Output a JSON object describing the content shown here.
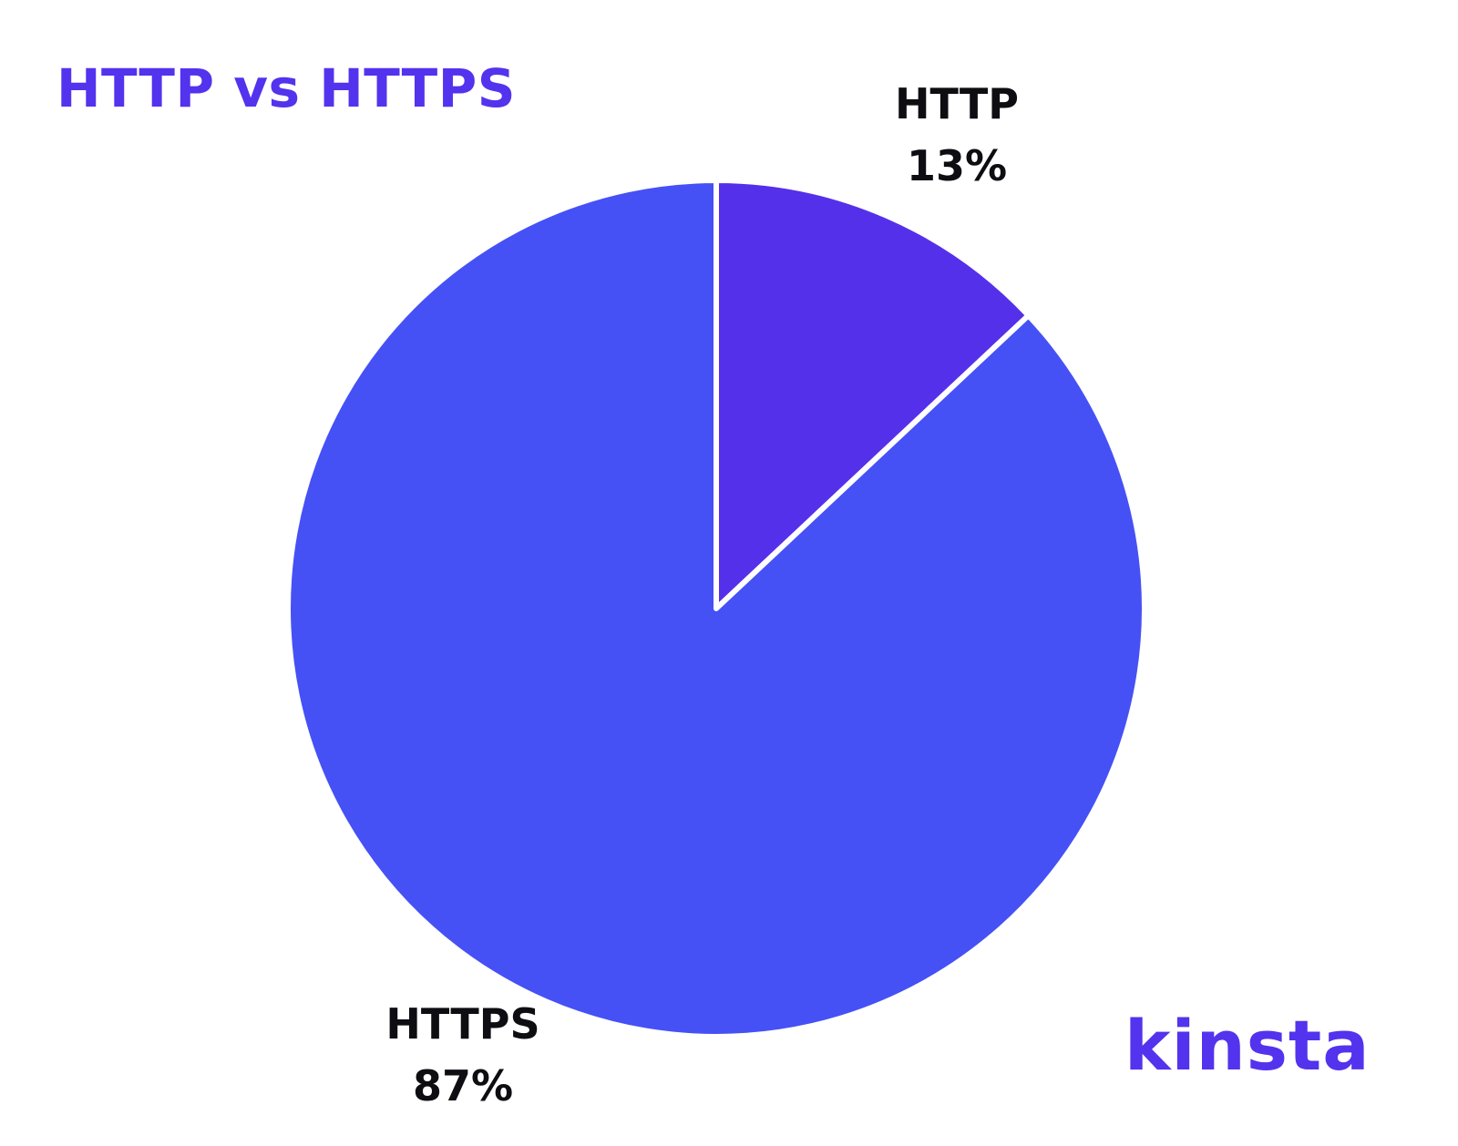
{
  "brand": {
    "logo_text": "kinsta",
    "accent_color": "#5333ed",
    "text_color": "#0d0d12"
  },
  "chart_data": {
    "type": "pie",
    "title": "HTTP vs HTTPS",
    "start_angle_deg": 0,
    "direction": "clockwise",
    "separator_color": "#ffffff",
    "slices": [
      {
        "label": "HTTP",
        "value": 13,
        "value_label": "13%",
        "color": "#5530ea"
      },
      {
        "label": "HTTPS",
        "value": 87,
        "value_label": "87%",
        "color": "#4551f5"
      }
    ]
  }
}
